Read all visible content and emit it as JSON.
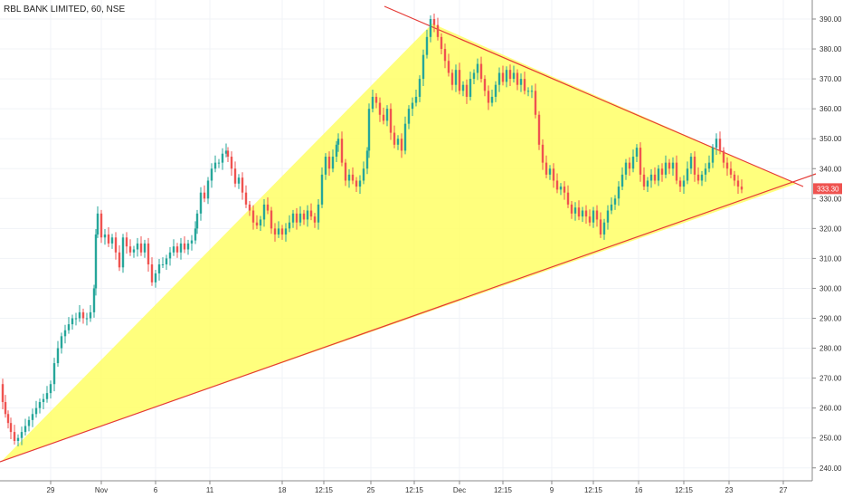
{
  "header": {
    "title": "RBL BANK LIMITED, 60, NSE"
  },
  "chart_data": {
    "type": "candlestick",
    "title": "RBL BANK LIMITED, 60, NSE",
    "ylim": [
      238,
      396
    ],
    "y_ticks": [
      240,
      250,
      260,
      270,
      280,
      290,
      300,
      310,
      320,
      330,
      340,
      350,
      360,
      370,
      380,
      390
    ],
    "y_tick_labels": [
      "240.00",
      "250.00",
      "260.00",
      "270.00",
      "280.00",
      "290.00",
      "300.00",
      "310.00",
      "320.00",
      "330.00",
      "340.00",
      "350.00",
      "360.00",
      "370.00",
      "380.00",
      "390.00"
    ],
    "x_tick_labels": [
      "29",
      "Nov",
      "6",
      "11",
      "18",
      "12:15",
      "25",
      "12:15",
      "Dec",
      "12:15",
      "9",
      "12:15",
      "16",
      "12:15",
      "23",
      "27"
    ],
    "last_price": "333.30",
    "colors": {
      "up": "#26a69a",
      "down": "#ef5350",
      "triangle_fill": "#ffff66",
      "trendline": "#e53935",
      "price_tag": "#ef5350"
    },
    "price_path": [
      [
        0,
        268
      ],
      [
        3,
        262
      ],
      [
        6,
        258
      ],
      [
        9,
        255
      ],
      [
        12,
        252
      ],
      [
        16,
        249
      ],
      [
        20,
        250
      ],
      [
        24,
        252
      ],
      [
        28,
        254
      ],
      [
        32,
        256
      ],
      [
        36,
        258
      ],
      [
        40,
        260
      ],
      [
        44,
        262
      ],
      [
        48,
        263
      ],
      [
        52,
        265
      ],
      [
        56,
        268
      ],
      [
        60,
        275
      ],
      [
        64,
        280
      ],
      [
        68,
        284
      ],
      [
        72,
        286
      ],
      [
        76,
        288
      ],
      [
        80,
        290
      ],
      [
        84,
        290
      ],
      [
        88,
        292
      ],
      [
        92,
        290
      ],
      [
        96,
        290
      ],
      [
        100,
        292
      ],
      [
        104,
        300
      ],
      [
        106,
        318
      ],
      [
        108,
        325
      ],
      [
        112,
        317
      ],
      [
        116,
        318
      ],
      [
        120,
        315
      ],
      [
        124,
        317
      ],
      [
        128,
        312
      ],
      [
        132,
        307
      ],
      [
        136,
        317
      ],
      [
        140,
        314
      ],
      [
        144,
        312
      ],
      [
        148,
        313
      ],
      [
        152,
        315
      ],
      [
        156,
        312
      ],
      [
        160,
        315
      ],
      [
        164,
        308
      ],
      [
        168,
        302
      ],
      [
        172,
        305
      ],
      [
        176,
        308
      ],
      [
        180,
        308
      ],
      [
        184,
        310
      ],
      [
        188,
        312
      ],
      [
        192,
        314
      ],
      [
        196,
        312
      ],
      [
        200,
        315
      ],
      [
        204,
        313
      ],
      [
        208,
        315
      ],
      [
        212,
        316
      ],
      [
        216,
        320
      ],
      [
        218,
        325
      ],
      [
        222,
        332
      ],
      [
        226,
        330
      ],
      [
        230,
        336
      ],
      [
        234,
        340
      ],
      [
        238,
        342
      ],
      [
        242,
        342
      ],
      [
        246,
        345
      ],
      [
        250,
        346
      ],
      [
        252,
        344
      ],
      [
        256,
        340
      ],
      [
        260,
        335
      ],
      [
        264,
        337
      ],
      [
        268,
        332
      ],
      [
        272,
        328
      ],
      [
        276,
        326
      ],
      [
        280,
        322
      ],
      [
        284,
        321
      ],
      [
        288,
        323
      ],
      [
        292,
        328
      ],
      [
        296,
        326
      ],
      [
        300,
        320
      ],
      [
        304,
        318
      ],
      [
        308,
        320
      ],
      [
        312,
        318
      ],
      [
        316,
        320
      ],
      [
        320,
        322
      ],
      [
        324,
        325
      ],
      [
        328,
        322
      ],
      [
        332,
        325
      ],
      [
        336,
        323
      ],
      [
        340,
        326
      ],
      [
        344,
        324
      ],
      [
        348,
        322
      ],
      [
        352,
        328
      ],
      [
        356,
        338
      ],
      [
        360,
        344
      ],
      [
        364,
        340
      ],
      [
        368,
        344
      ],
      [
        372,
        348
      ],
      [
        374,
        350
      ],
      [
        378,
        342
      ],
      [
        382,
        336
      ],
      [
        386,
        338
      ],
      [
        390,
        336
      ],
      [
        394,
        334
      ],
      [
        398,
        336
      ],
      [
        402,
        340
      ],
      [
        406,
        346
      ],
      [
        408,
        360
      ],
      [
        412,
        364
      ],
      [
        416,
        362
      ],
      [
        420,
        358
      ],
      [
        424,
        356
      ],
      [
        428,
        360
      ],
      [
        432,
        352
      ],
      [
        436,
        348
      ],
      [
        440,
        350
      ],
      [
        444,
        346
      ],
      [
        448,
        355
      ],
      [
        452,
        360
      ],
      [
        456,
        362
      ],
      [
        460,
        364
      ],
      [
        464,
        370
      ],
      [
        468,
        378
      ],
      [
        472,
        384
      ],
      [
        476,
        390
      ],
      [
        480,
        388
      ],
      [
        484,
        384
      ],
      [
        488,
        380
      ],
      [
        492,
        376
      ],
      [
        496,
        372
      ],
      [
        500,
        368
      ],
      [
        504,
        373
      ],
      [
        508,
        366
      ],
      [
        512,
        368
      ],
      [
        516,
        364
      ],
      [
        520,
        370
      ],
      [
        524,
        372
      ],
      [
        528,
        375
      ],
      [
        532,
        370
      ],
      [
        536,
        366
      ],
      [
        540,
        362
      ],
      [
        544,
        364
      ],
      [
        548,
        368
      ],
      [
        552,
        372
      ],
      [
        556,
        369
      ],
      [
        560,
        373
      ],
      [
        564,
        370
      ],
      [
        568,
        372
      ],
      [
        572,
        368
      ],
      [
        576,
        370
      ],
      [
        580,
        366
      ],
      [
        584,
        366
      ],
      [
        588,
        366
      ],
      [
        592,
        358
      ],
      [
        596,
        348
      ],
      [
        600,
        342
      ],
      [
        604,
        338
      ],
      [
        608,
        340
      ],
      [
        612,
        336
      ],
      [
        616,
        333
      ],
      [
        620,
        334
      ],
      [
        624,
        332
      ],
      [
        628,
        328
      ],
      [
        632,
        325
      ],
      [
        636,
        327
      ],
      [
        640,
        324
      ],
      [
        644,
        326
      ],
      [
        648,
        324
      ],
      [
        652,
        322
      ],
      [
        656,
        326
      ],
      [
        660,
        323
      ],
      [
        664,
        318
      ],
      [
        668,
        322
      ],
      [
        672,
        326
      ],
      [
        676,
        328
      ],
      [
        680,
        330
      ],
      [
        684,
        334
      ],
      [
        688,
        338
      ],
      [
        692,
        342
      ],
      [
        696,
        340
      ],
      [
        700,
        344
      ],
      [
        704,
        347
      ],
      [
        708,
        338
      ],
      [
        712,
        334
      ],
      [
        716,
        336
      ],
      [
        720,
        338
      ],
      [
        724,
        336
      ],
      [
        728,
        340
      ],
      [
        732,
        338
      ],
      [
        736,
        342
      ],
      [
        740,
        340
      ],
      [
        744,
        342
      ],
      [
        748,
        336
      ],
      [
        752,
        334
      ],
      [
        756,
        336
      ],
      [
        760,
        340
      ],
      [
        764,
        344
      ],
      [
        768,
        338
      ],
      [
        772,
        336
      ],
      [
        776,
        338
      ],
      [
        780,
        340
      ],
      [
        784,
        342
      ],
      [
        788,
        347
      ],
      [
        792,
        350
      ],
      [
        796,
        346
      ],
      [
        800,
        342
      ],
      [
        804,
        340
      ],
      [
        808,
        338
      ],
      [
        812,
        336
      ],
      [
        816,
        334
      ],
      [
        820,
        333
      ]
    ]
  }
}
